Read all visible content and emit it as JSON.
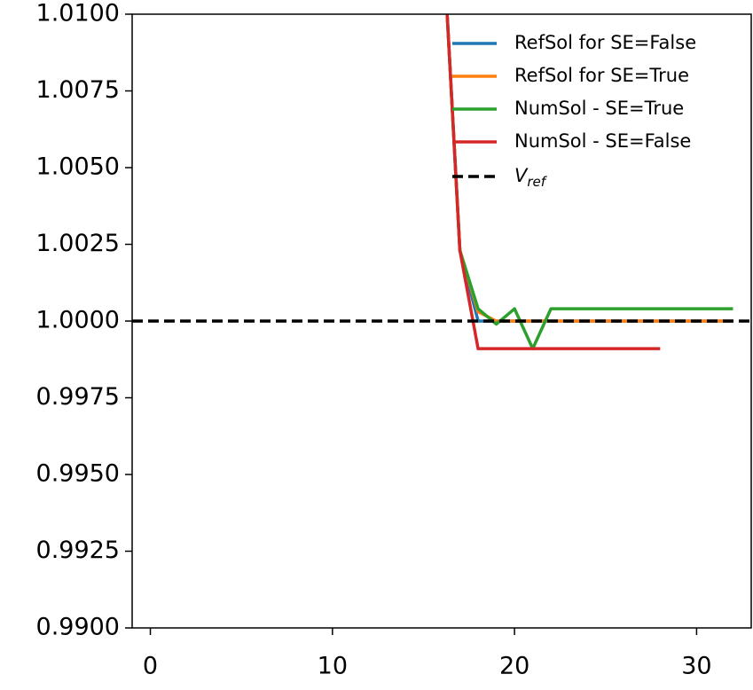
{
  "chart_data": {
    "type": "line",
    "xlim": [
      -1,
      33
    ],
    "ylim": [
      0.99,
      1.01
    ],
    "xticks": [
      0,
      10,
      20,
      30
    ],
    "yticks": [
      {
        "value": 0.99,
        "label": "0.9900"
      },
      {
        "value": 0.9925,
        "label": "0.9925"
      },
      {
        "value": 0.995,
        "label": "0.9950"
      },
      {
        "value": 0.9975,
        "label": "0.9975"
      },
      {
        "value": 1.0,
        "label": "1.0000"
      },
      {
        "value": 1.0025,
        "label": "1.0025"
      },
      {
        "value": 1.005,
        "label": "1.0050"
      },
      {
        "value": 1.0075,
        "label": "1.0075"
      },
      {
        "value": 1.01,
        "label": "1.0100"
      }
    ],
    "legend": "upper right",
    "series": [
      {
        "name": "RefSol for SE=False",
        "color": "#1f77b4",
        "x": [
          16,
          17,
          18,
          19,
          20,
          21,
          22,
          23,
          24,
          25,
          26,
          27,
          28,
          29,
          30,
          31,
          32
        ],
        "values": [
          1.0133,
          1.0023,
          1.0,
          1.0,
          1.0,
          1.0,
          1.0,
          1.0,
          1.0,
          1.0,
          1.0,
          1.0,
          1.0,
          1.0,
          1.0,
          1.0,
          1.0
        ]
      },
      {
        "name": "RefSol for SE=True",
        "color": "#ff7f0e",
        "x": [
          16,
          17,
          18,
          19,
          20,
          21,
          22,
          23,
          24,
          25,
          26,
          27,
          28,
          29,
          30,
          31,
          32
        ],
        "values": [
          1.0133,
          1.0023,
          1.0003,
          1.0,
          1.0,
          1.0,
          1.0,
          1.0,
          1.0,
          1.0,
          1.0,
          1.0,
          1.0,
          1.0,
          1.0,
          1.0,
          1.0
        ]
      },
      {
        "name": "NumSol - SE=True",
        "color": "#2ca02c",
        "x": [
          16,
          17,
          18,
          19,
          20,
          21,
          22,
          23,
          24,
          25,
          26,
          27,
          28,
          29,
          30,
          31,
          32
        ],
        "values": [
          1.0133,
          1.0023,
          1.0004,
          0.9999,
          1.0004,
          0.9991,
          1.0004,
          1.0004,
          1.0004,
          1.0004,
          1.0004,
          1.0004,
          1.0004,
          1.0004,
          1.0004,
          1.0004,
          1.0004
        ]
      },
      {
        "name": "NumSol - SE=False",
        "color": "#d62728",
        "x": [
          16,
          17,
          18,
          19,
          20,
          21,
          22,
          23,
          24,
          25,
          26,
          27,
          28
        ],
        "values": [
          1.0133,
          1.0023,
          0.9991,
          0.9991,
          0.9991,
          0.9991,
          0.9991,
          0.9991,
          0.9991,
          0.9991,
          0.9991,
          0.9991,
          0.9991
        ]
      }
    ],
    "hline": {
      "value": 1.0,
      "color": "#000000",
      "label": "V",
      "label_subscript": "ref"
    }
  }
}
